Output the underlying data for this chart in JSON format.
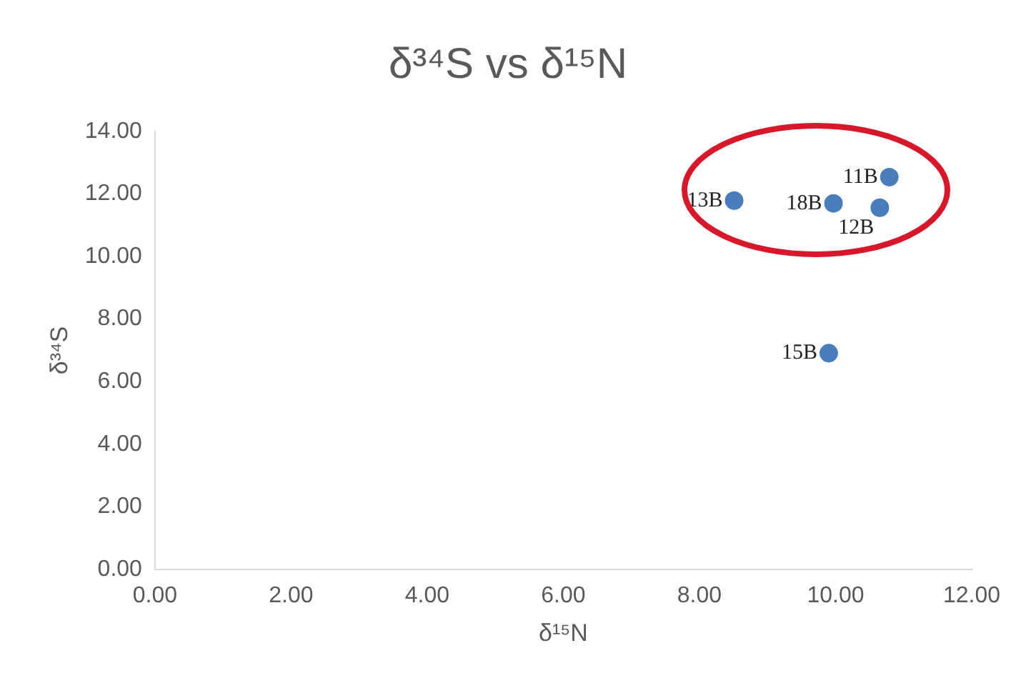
{
  "chart_data": {
    "type": "scatter",
    "title": "δ³⁴S vs δ¹⁵N",
    "xlabel": "δ¹⁵N",
    "ylabel": "δ³⁴S",
    "series": [
      {
        "color": "#4a7ebb",
        "x": [
          10.79,
          8.51,
          9.97,
          10.65,
          9.9
        ],
        "values": [
          12.54,
          11.79,
          11.7,
          11.56,
          6.91
        ]
      }
    ],
    "annotations": [
      {
        "text": "11B",
        "x": 10.79,
        "y": 12.54
      },
      {
        "text": "13B",
        "x": 8.51,
        "y": 11.79
      },
      {
        "text": "18B",
        "x": 9.97,
        "y": 11.7
      },
      {
        "text": "12B",
        "x": 10.65,
        "y": 11.56
      },
      {
        "text": "15B",
        "x": 9.9,
        "y": 6.91
      }
    ],
    "xlim": [
      0,
      12
    ],
    "ylim": [
      0,
      14
    ],
    "xticks": [
      {
        "value": 0,
        "label": "0.00"
      },
      {
        "value": 2,
        "label": "2.00"
      },
      {
        "value": 4,
        "label": "4.00"
      },
      {
        "value": 6,
        "label": "6.00"
      },
      {
        "value": 8,
        "label": "8.00"
      },
      {
        "value": 10,
        "label": "10.00"
      },
      {
        "value": 12,
        "label": "12.00"
      }
    ],
    "yticks": [
      {
        "value": 0,
        "label": "0.00"
      },
      {
        "value": 2,
        "label": "2.00"
      },
      {
        "value": 4,
        "label": "4.00"
      },
      {
        "value": 6,
        "label": "6.00"
      },
      {
        "value": 8,
        "label": "8.00"
      },
      {
        "value": 10,
        "label": "10.00"
      },
      {
        "value": 12,
        "label": "12.00"
      },
      {
        "value": 14,
        "label": "14.00"
      }
    ],
    "grid": false,
    "legend": false,
    "marker": "circle"
  }
}
